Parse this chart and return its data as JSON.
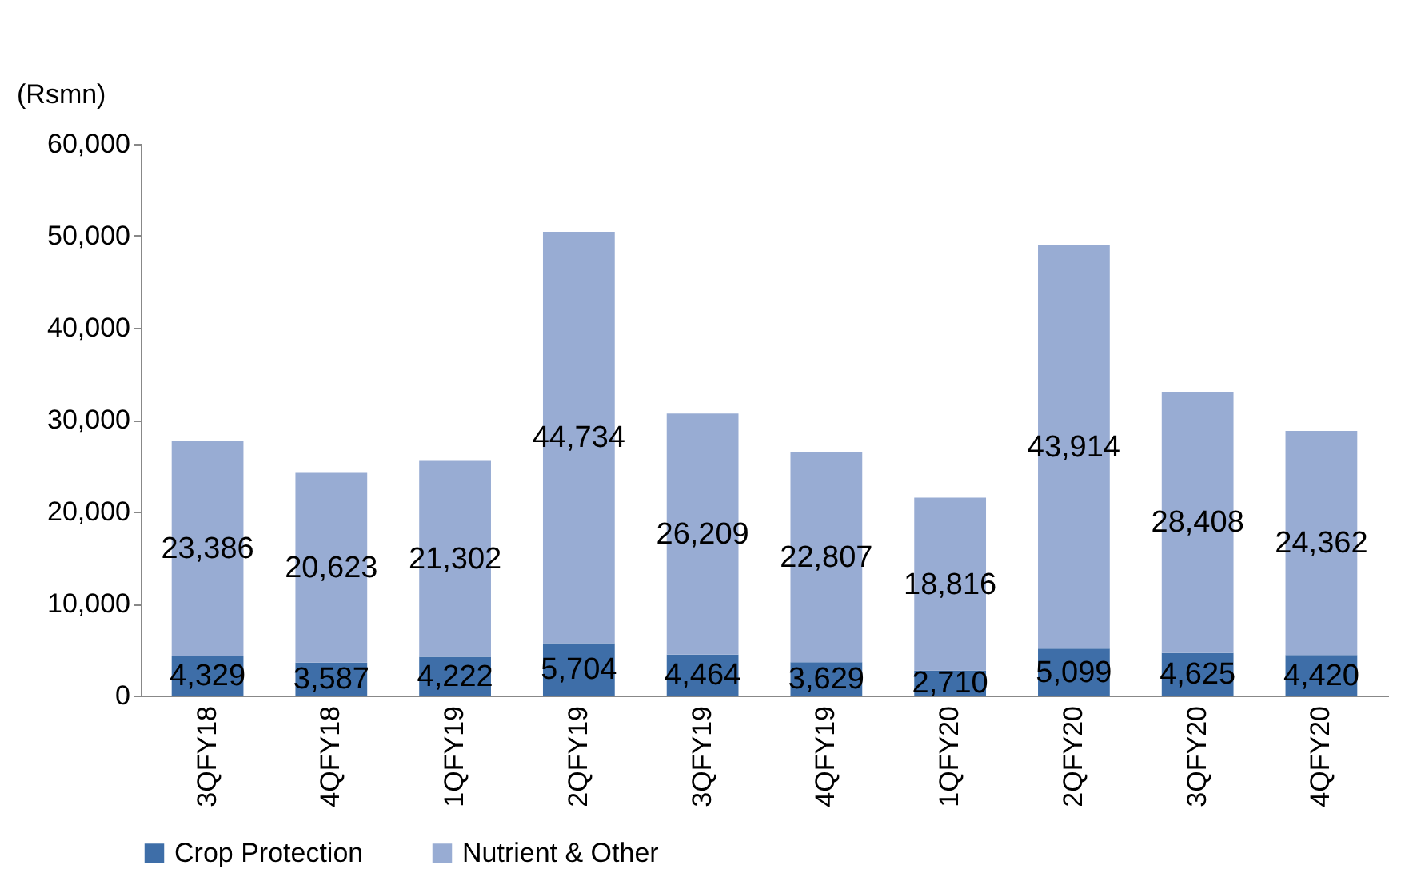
{
  "chart_data": {
    "type": "bar",
    "stacked": true,
    "ylabel": "(Rsmn)",
    "categories": [
      "3QFY18",
      "4QFY18",
      "1QFY19",
      "2QFY19",
      "3QFY19",
      "4QFY19",
      "1QFY20",
      "2QFY20",
      "3QFY20",
      "4QFY20"
    ],
    "series": [
      {
        "name": "Crop Protection",
        "color": "#3e6ea8",
        "values": [
          4329,
          3587,
          4222,
          5704,
          4464,
          3629,
          2710,
          5099,
          4625,
          4420
        ],
        "value_labels": [
          "4,329",
          "3,587",
          "4,222",
          "5,704",
          "4,464",
          "3,629",
          "2,710",
          "5,099",
          "4,625",
          "4,420"
        ]
      },
      {
        "name": "Nutrient & Other",
        "color": "#98acd3",
        "values": [
          23386,
          20623,
          21302,
          44734,
          26209,
          22807,
          18816,
          43914,
          28408,
          24362
        ],
        "value_labels": [
          "23,386",
          "20,623",
          "21,302",
          "44,734",
          "26,209",
          "22,807",
          "18,816",
          "43,914",
          "28,408",
          "24,362"
        ]
      }
    ],
    "ylim": [
      0,
      60000
    ],
    "yticks": [
      0,
      {
        "value": 10000,
        "label": "10,000"
      },
      {
        "value": 20000,
        "label": "20,000"
      },
      {
        "value": 30000,
        "label": "30,000"
      },
      {
        "value": 40000,
        "label": "40,000"
      },
      {
        "value": 50000,
        "label": "50,000"
      },
      {
        "value": 60000,
        "label": "60,000"
      }
    ],
    "grid": false,
    "legend": "bottom"
  }
}
